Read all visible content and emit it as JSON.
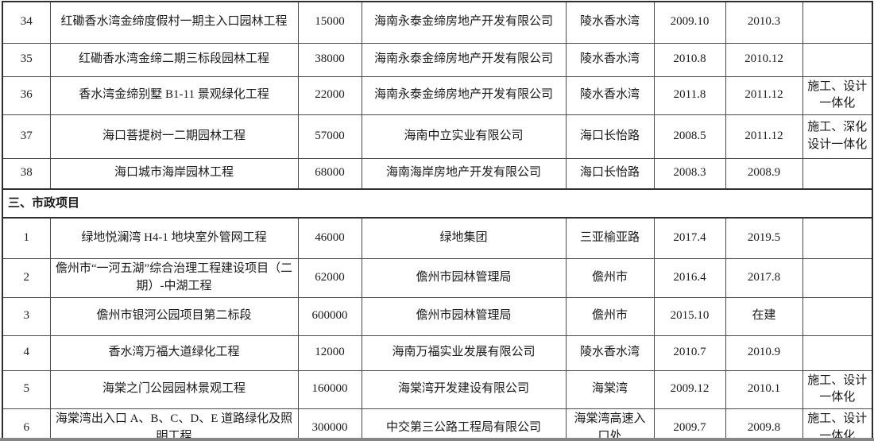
{
  "colors": {
    "text": "#1a1a1a",
    "outer_border": "#2e2e2e",
    "grid_line": "#4a4a4a",
    "bottom_strip": "#868686"
  },
  "table": {
    "section_title": "三、市政项目",
    "garden_rows": [
      {
        "no": "34",
        "project": "红磡香水湾金缔度假村一期主入口园林工程",
        "amount": "15000",
        "company": "海南永泰金缔房地产开发有限公司",
        "location": "陵水香水湾",
        "start": "2009.10",
        "end": "2010.3",
        "note": ""
      },
      {
        "no": "35",
        "project": "红磡香水湾金缔二期三标段园林工程",
        "amount": "38000",
        "company": "海南永泰金缔房地产开发有限公司",
        "location": "陵水香水湾",
        "start": "2010.8",
        "end": "2010.12",
        "note": ""
      },
      {
        "no": "36",
        "project": "香水湾金缔别墅 B1-11 景观绿化工程",
        "amount": "22000",
        "company": "海南永泰金缔房地产开发有限公司",
        "location": "陵水香水湾",
        "start": "2011.8",
        "end": "2011.12",
        "note": "施工、设计一体化"
      },
      {
        "no": "37",
        "project": "海口菩提树一二期园林工程",
        "amount": "57000",
        "company": "海南中立实业有限公司",
        "location": "海口长怡路",
        "start": "2008.5",
        "end": "2011.12",
        "note": "施工、深化设计一体化"
      },
      {
        "no": "38",
        "project": "海口城市海岸园林工程",
        "amount": "68000",
        "company": "海南海岸房地产开发有限公司",
        "location": "海口长怡路",
        "start": "2008.3",
        "end": "2008.9",
        "note": ""
      }
    ],
    "municipal_rows": [
      {
        "no": "1",
        "project": "绿地悦澜湾 H4-1 地块室外管网工程",
        "amount": "46000",
        "company": "绿地集团",
        "location": "三亚榆亚路",
        "start": "2017.4",
        "end": "2019.5",
        "note": ""
      },
      {
        "no": "2",
        "project": "儋州市“一河五湖”综合治理工程建设项目（二期）-中湖工程",
        "amount": "62000",
        "company": "儋州市园林管理局",
        "location": "儋州市",
        "start": "2016.4",
        "end": "2017.8",
        "note": ""
      },
      {
        "no": "3",
        "project": "儋州市银河公园项目第二标段",
        "amount": "600000",
        "company": "儋州市园林管理局",
        "location": "儋州市",
        "start": "2015.10",
        "end": "在建",
        "note": ""
      },
      {
        "no": "4",
        "project": "香水湾万福大道绿化工程",
        "amount": "12000",
        "company": "海南万福实业发展有限公司",
        "location": "陵水香水湾",
        "start": "2010.7",
        "end": "2010.9",
        "note": ""
      },
      {
        "no": "5",
        "project": "海棠之门公园园林景观工程",
        "amount": "160000",
        "company": "海棠湾开发建设有限公司",
        "location": "海棠湾",
        "start": "2009.12",
        "end": "2010.1",
        "note": "施工、设计一体化"
      },
      {
        "no": "6",
        "project": "海棠湾出入口 A、B、C、D、E 道路绿化及照明工程",
        "amount": "300000",
        "company": "中交第三公路工程局有限公司",
        "location": "海棠湾高速入口处",
        "start": "2009.7",
        "end": "2009.8",
        "note": "施工、设计一体化"
      }
    ]
  }
}
